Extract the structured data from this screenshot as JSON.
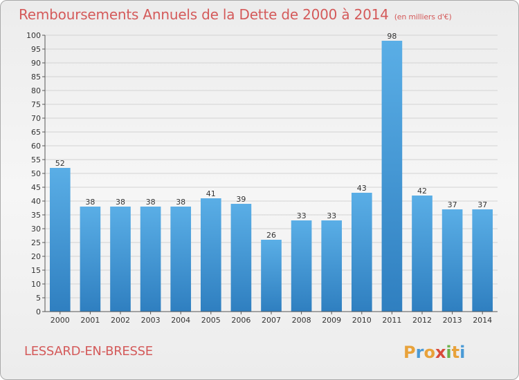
{
  "header": {
    "title": "Remboursements Annuels de la Dette de 2000 à 2014",
    "unit": "(en milliers d'€)"
  },
  "footer": {
    "commune": "LESSARD-EN-BRESSE",
    "logo_text": "Proxiti"
  },
  "colors": {
    "title": "#d45a5a",
    "bar_top": "#5aaee6",
    "bar_bottom": "#2f7fc0",
    "grid": "#d2d2d2"
  },
  "chart_data": {
    "type": "bar",
    "title": "Remboursements Annuels de la Dette de 2000 à 2014",
    "xlabel": "",
    "ylabel": "",
    "categories": [
      "2000",
      "2001",
      "2002",
      "2003",
      "2004",
      "2005",
      "2006",
      "2007",
      "2008",
      "2009",
      "2010",
      "2011",
      "2012",
      "2013",
      "2014"
    ],
    "values": [
      52,
      38,
      38,
      38,
      38,
      41,
      39,
      26,
      33,
      33,
      43,
      98,
      42,
      37,
      37
    ],
    "ylim": [
      0,
      100
    ],
    "ytick_step": 5,
    "grid": true,
    "data_labels": true
  }
}
